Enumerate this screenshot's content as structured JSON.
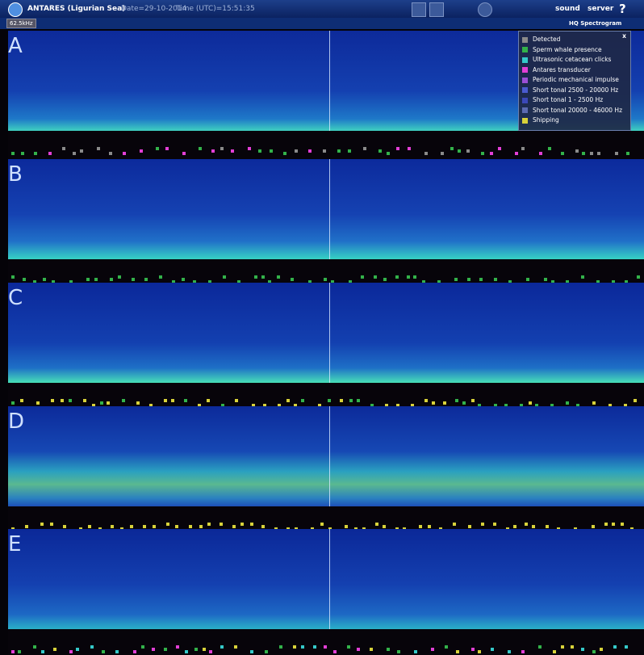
{
  "header": {
    "title": "ANTARES (Ligurian Sea)",
    "date": "Date=29-10-2014",
    "time": "Time (UTC)=15:51:35",
    "sound": "sound",
    "server": "server",
    "help": "?",
    "freq": "62.5kHz",
    "hq": "HQ Spectrogram"
  },
  "legend": {
    "close": "x",
    "items": [
      {
        "label": "Detected",
        "color": "#8a8a8a"
      },
      {
        "label": "Sperm whale presence",
        "color": "#33b24a"
      },
      {
        "label": "Ultrasonic cetacean clicks",
        "color": "#35c9c9"
      },
      {
        "label": "Antares transducer",
        "color": "#e23fd6"
      },
      {
        "label": "Periodic mechanical impulse",
        "color": "#9b4fd6"
      },
      {
        "label": "Short tonal 2500 - 20000 Hz",
        "color": "#4a5bd0"
      },
      {
        "label": "Short tonal 1 - 2500 Hz",
        "color": "#3b48b8"
      },
      {
        "label": "Short tonal 20000 - 46000 Hz",
        "color": "#5b6ab0"
      },
      {
        "label": "Shipping",
        "color": "#d8d23a"
      }
    ]
  },
  "panels": [
    "A",
    "B",
    "C",
    "D",
    "E"
  ]
}
